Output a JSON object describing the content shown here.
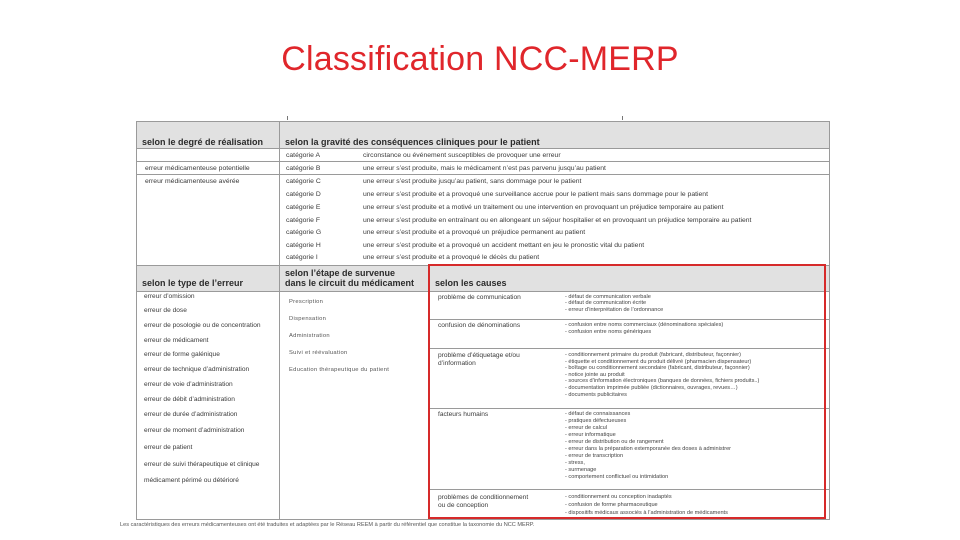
{
  "slide": {
    "title": "Classification NCC-MERP"
  },
  "table": {
    "header_realisation": "selon le degré de réalisation",
    "header_gravite": "selon la gravité des conséquences cliniques pour le patient",
    "realisation_rows": [
      "erreur médicamenteuse potentielle",
      "erreur médicamenteuse avérée"
    ],
    "categories": [
      {
        "cat": "catégorie A",
        "desc": "circonstance ou événement susceptibles de provoquer une erreur"
      },
      {
        "cat": "catégorie B",
        "desc": "une erreur s’est produite, mais le médicament n’est pas parvenu jusqu’au patient"
      },
      {
        "cat": "catégorie C",
        "desc": "une erreur s’est produite jusqu’au patient, sans dommage pour le patient"
      },
      {
        "cat": "catégorie D",
        "desc": "une erreur s’est produite et a provoqué une surveillance accrue pour le patient mais sans dommage pour le patient"
      },
      {
        "cat": "catégorie E",
        "desc": "une erreur s’est produite et a motivé un traitement ou une intervention en provoquant un préjudice temporaire au patient"
      },
      {
        "cat": "catégorie F",
        "desc": "une erreur s’est produite en entraînant ou en allongeant un séjour hospitalier et en provoquant un préjudice temporaire au patient"
      },
      {
        "cat": "catégorie G",
        "desc": "une erreur s’est produite et a provoqué un préjudice permanent au patient"
      },
      {
        "cat": "catégorie H",
        "desc": "une erreur s’est produite et a provoqué un accident mettant en jeu le pronostic vital du patient"
      },
      {
        "cat": "catégorie I",
        "desc": "une erreur s’est produite et a provoqué le décès du patient"
      }
    ],
    "header_type": "selon le type de l’erreur",
    "header_etape_1": "selon l’étape de survenue",
    "header_etape_2": "dans le circuit du médicament",
    "header_causes": "selon les causes",
    "types": [
      "erreur d’omission",
      "erreur de dose",
      "erreur de posologie ou de concentration",
      "erreur de médicament",
      "erreur de forme galénique",
      "erreur de technique d’administration",
      "erreur de voie d’administration",
      "erreur de débit d’administration",
      "erreur de durée d’administration",
      "erreur de moment d’administration",
      "erreur de patient",
      "erreur de suivi thérapeutique et clinique",
      "médicament périmé ou détérioré"
    ],
    "etapes": [
      "Prescription",
      "Dispensation",
      "Administration",
      "Suivi et réévaluation",
      "Education thérapeutique du patient"
    ],
    "causes": [
      {
        "label": [
          "problème de communication"
        ],
        "items": [
          "- défaut de communication verbale",
          "- défaut de communication écrite",
          "- erreur d’interprétation de l’ordonnance"
        ]
      },
      {
        "label": [
          "confusion de dénominations"
        ],
        "items": [
          "- confusion entre noms commerciaux (dénominations spéciales)",
          "- confusion entre noms génériques"
        ]
      },
      {
        "label": [
          "problème d’étiquetage  et/ou",
          "d’information"
        ],
        "items": [
          "- conditionnement primaire du produit (fabricant, distributeur, façonnier)",
          "- étiquette et conditionnement du produit délivré (pharmacien dispensateur)",
          "- boîtage ou conditionnement secondaire (fabricant, distributeur, façonnier)",
          "- notice jointe au produit",
          "- sources d’information électroniques (banques de données, fichiers produits..)",
          "- documentation imprimée publiée (dictionnaires, ouvrages, revues…)",
          "- documents publicitaires"
        ]
      },
      {
        "label": [
          "facteurs humains"
        ],
        "items": [
          "- défaut de connaissances",
          "- pratiques défectueuses",
          "- erreur de calcul",
          "- erreur informatique",
          "- erreur de distribution ou de rangement",
          "- erreur dans la préparation extemporanée des doses à administrer",
          "- erreur de transcription",
          "- stress,",
          "- surmenage",
          "- comportement conflictuel ou intimidation"
        ]
      },
      {
        "label": [
          "problèmes de conditionnement",
          "ou de conception"
        ],
        "items": [
          "- conditionnement ou conception inadaptés",
          "- confusion de forme pharmaceutique",
          "- dispositifs médicaux associés à l’administration de médicaments"
        ]
      }
    ],
    "footnote": "Les caractéristiques des erreurs médicamenteuses ont été traduites et adaptées par le Réseau REEM à partir du référentiel que constitue la taxonomie du NCC MERP."
  },
  "colors": {
    "title": "#e0262b",
    "highlight_box": "#d62a2a",
    "header_bg": "#e1e1e1"
  }
}
